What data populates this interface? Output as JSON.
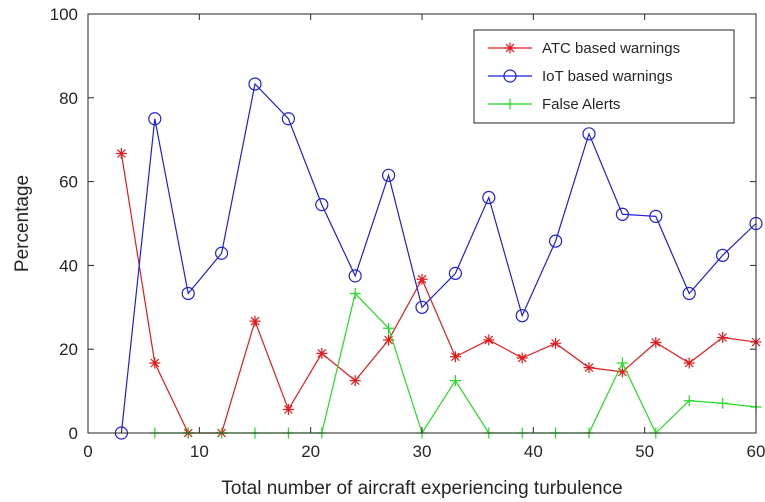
{
  "chart_data": {
    "type": "line",
    "title": "",
    "xlabel": "Total number of aircraft experiencing turbulence",
    "ylabel": "Percentage",
    "xlim": [
      0,
      60
    ],
    "ylim": [
      0,
      100
    ],
    "xticks": [
      0,
      10,
      20,
      30,
      40,
      50,
      60
    ],
    "yticks": [
      0,
      20,
      40,
      60,
      80,
      100
    ],
    "grid": false,
    "legend_position": "top-right",
    "series": [
      {
        "name": "ATC based warnings",
        "color": "#e41a1c",
        "marker": "asterisk",
        "x": [
          3,
          6,
          9,
          12,
          15,
          18,
          21,
          24,
          27,
          30,
          33,
          36,
          39,
          42,
          45,
          48,
          51,
          54,
          57,
          60
        ],
        "values": [
          66.7,
          16.7,
          0,
          0,
          26.7,
          5.6,
          19,
          12.5,
          22.2,
          36.7,
          18.2,
          22.2,
          17.9,
          21.4,
          15.6,
          14.6,
          21.6,
          16.7,
          22.8,
          21.7
        ]
      },
      {
        "name": "IoT based warnings",
        "color": "#1f1fd6",
        "marker": "circle",
        "x": [
          3,
          6,
          9,
          12,
          15,
          18,
          21,
          24,
          27,
          30,
          33,
          36,
          39,
          42,
          45,
          48,
          51,
          54,
          57,
          60
        ],
        "values": [
          0,
          75,
          33.3,
          42.9,
          83.3,
          75,
          54.5,
          37.5,
          61.5,
          30,
          38.1,
          56.2,
          28,
          45.8,
          71.4,
          52.2,
          51.7,
          33.3,
          42.4,
          50
        ]
      },
      {
        "name": "False Alerts",
        "color": "#22dd22",
        "marker": "plus",
        "x": [
          6,
          9,
          12,
          15,
          18,
          21,
          24,
          27,
          30,
          33,
          36,
          39,
          42,
          45,
          48,
          51,
          54,
          57,
          60
        ],
        "values": [
          0,
          0,
          0,
          0,
          0,
          0,
          33.3,
          25,
          0,
          12.5,
          0,
          0,
          0,
          0,
          16.7,
          0,
          7.7,
          7.1,
          6.2
        ]
      }
    ]
  }
}
